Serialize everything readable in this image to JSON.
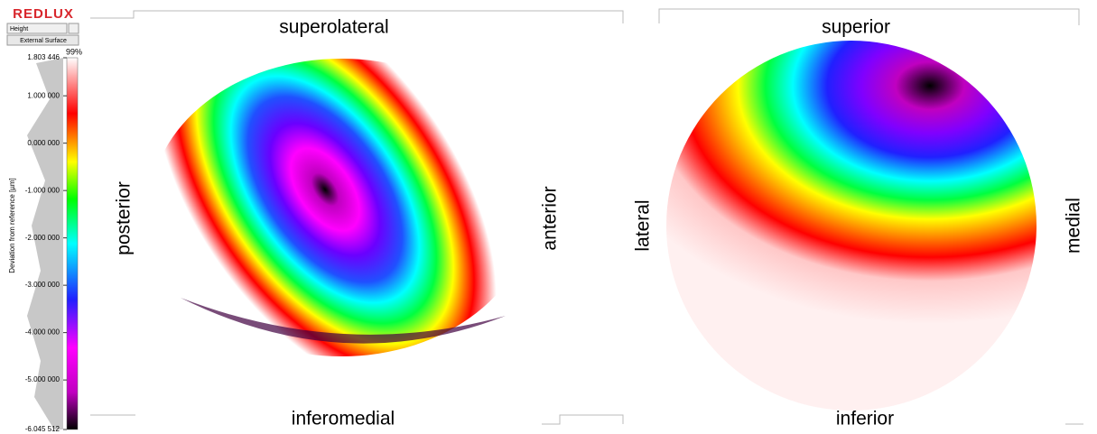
{
  "app": {
    "logo": "REDLUX",
    "mode": "Height",
    "surface_button": "External Surface"
  },
  "colorbar": {
    "percent": "99%",
    "axis_label": "Deviation from reference [µm]",
    "ticks": [
      {
        "value": 1.803446,
        "label": "1.803 446"
      },
      {
        "value": 1,
        "label": "1.000 000"
      },
      {
        "value": 0,
        "label": "0.000 000"
      },
      {
        "value": -1,
        "label": "-1.000 000"
      },
      {
        "value": -2,
        "label": "-2.000 000"
      },
      {
        "value": -3,
        "label": "-3.000 000"
      },
      {
        "value": -4,
        "label": "-4.000 000"
      },
      {
        "value": -5,
        "label": "-5.000 000"
      },
      {
        "value": -6.045512,
        "label": "-6.045 512"
      }
    ]
  },
  "views": [
    {
      "top": "superolateral",
      "bottom": "inferomedial",
      "left": "posterior",
      "right": "anterior"
    },
    {
      "top": "superior",
      "bottom": "inferior",
      "left": "lateral",
      "right": "medial"
    }
  ]
}
